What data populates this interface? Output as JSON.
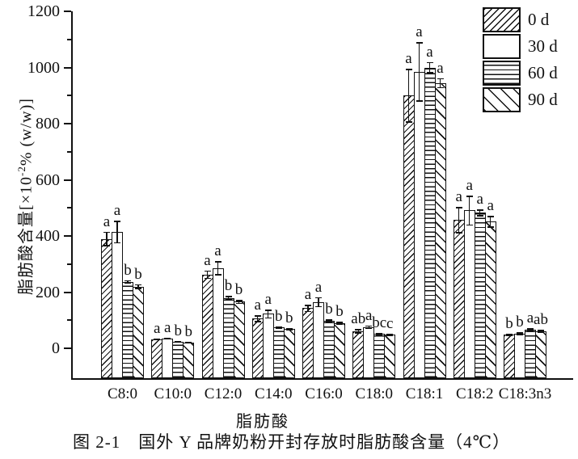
{
  "figure": {
    "caption": "图 2-1　国外 Y 品牌奶粉开封存放时脂肪酸含量（4℃）"
  },
  "chart_data": {
    "type": "bar",
    "title": "",
    "xlabel": "脂肪酸",
    "ylabel": "脂肪酸含量[×10⁻²% (w/w)]",
    "ylabel_parts": {
      "prefix": "脂肪酸含量[×10",
      "sup": "-2",
      "suffix": "% (w/w)]"
    },
    "ylim": [
      0,
      1200
    ],
    "y_major_step": 200,
    "y_minor_step": 100,
    "grid": false,
    "legend_position": "top-right",
    "categories": [
      "C8:0",
      "C10:0",
      "C12:0",
      "C14:0",
      "C16:0",
      "C18:0",
      "C18:1",
      "C18:2",
      "C18:3n3"
    ],
    "series": [
      {
        "name": "0 d",
        "pattern": "diagonal-up-fine",
        "values": [
          390,
          33,
          263,
          106,
          143,
          62,
          900,
          457,
          49
        ],
        "errors": [
          25,
          3,
          14,
          12,
          12,
          7,
          95,
          46,
          4
        ],
        "letters": [
          "a",
          "a",
          "a",
          "a",
          "a",
          "ab",
          "a",
          "a",
          "b"
        ]
      },
      {
        "name": "30 d",
        "pattern": "plain",
        "values": [
          415,
          36,
          286,
          123,
          165,
          76,
          985,
          491,
          53
        ],
        "errors": [
          40,
          3,
          25,
          15,
          17,
          6,
          105,
          52,
          4
        ],
        "letters": [
          "a",
          "a",
          "a",
          "a",
          "a",
          "a",
          "a",
          "a",
          "b"
        ]
      },
      {
        "name": "60 d",
        "pattern": "horizontal-lines",
        "values": [
          237,
          23,
          180,
          74,
          98,
          52,
          1000,
          483,
          67
        ],
        "errors": [
          6,
          2,
          6,
          4,
          5,
          4,
          20,
          11,
          4
        ],
        "letters": [
          "b",
          "b",
          "b",
          "b",
          "b",
          "bc",
          "a",
          "a",
          "a"
        ]
      },
      {
        "name": "90 d",
        "pattern": "diagonal-down-coarse",
        "values": [
          220,
          22,
          166,
          69,
          90,
          48,
          945,
          451,
          62
        ],
        "errors": [
          8,
          2,
          6,
          4,
          5,
          4,
          17,
          20,
          4
        ],
        "letters": [
          "b",
          "b",
          "b",
          "b",
          "b",
          "c",
          "a",
          "a",
          "ab"
        ]
      }
    ]
  },
  "colors": {
    "ink": "#111111",
    "background": "#ffffff"
  }
}
